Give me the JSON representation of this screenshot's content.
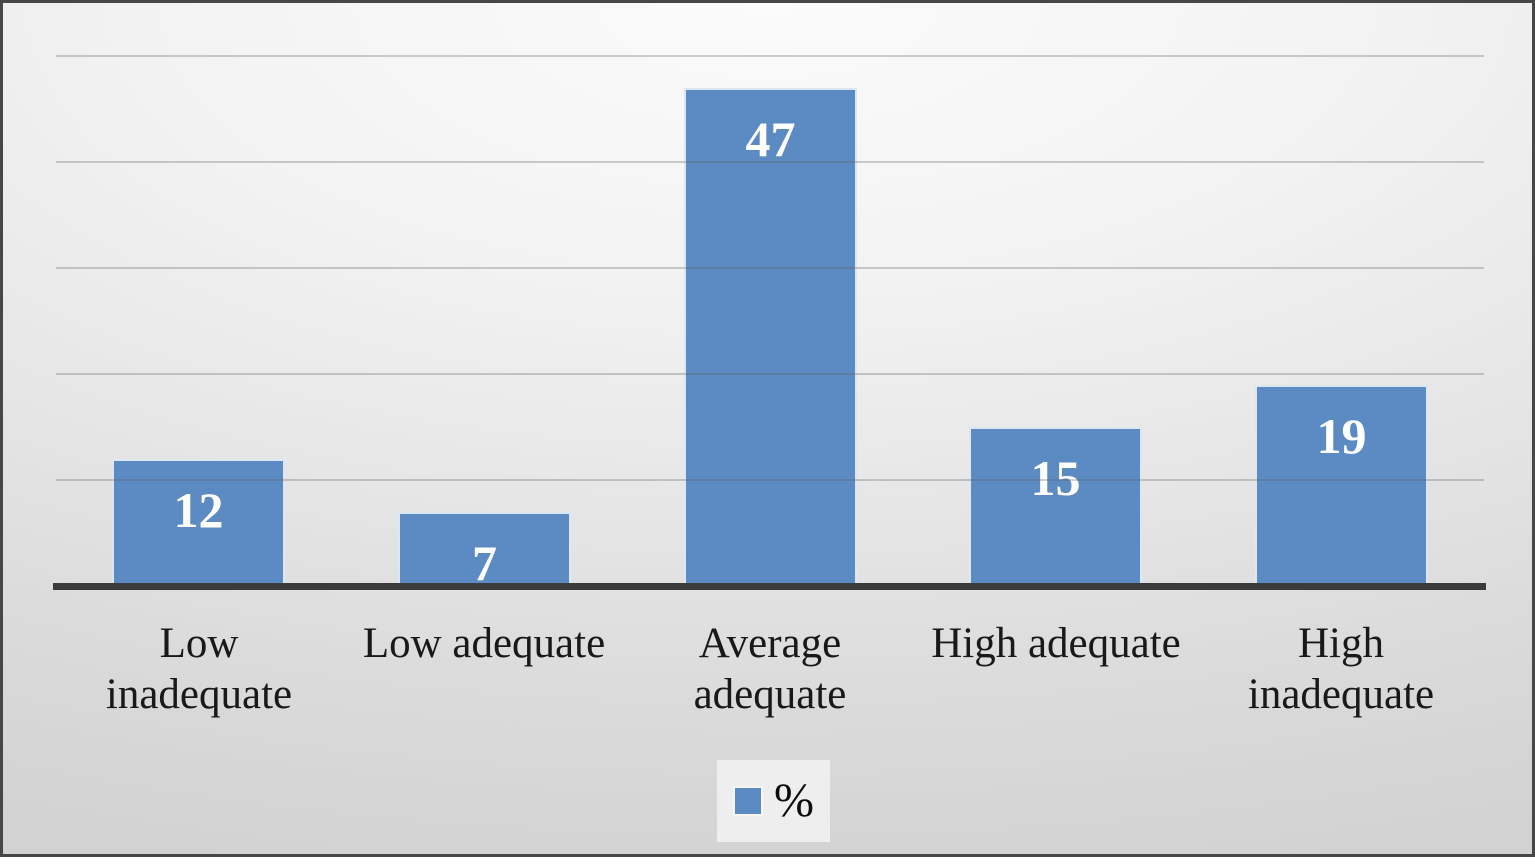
{
  "chart_data": {
    "type": "bar",
    "title": "",
    "xlabel": "",
    "ylabel": "",
    "categories": [
      "Low inadequate",
      "Low adequate",
      "Average adequate",
      "High adequate",
      "High inadequate"
    ],
    "series": [
      {
        "name": "%",
        "values": [
          12,
          7,
          47,
          15,
          19
        ]
      }
    ],
    "data_labels": [
      12,
      7,
      47,
      15,
      19
    ],
    "ylim": [
      0,
      55
    ],
    "gridline_values": [
      10,
      20,
      30,
      40,
      50
    ],
    "grid": "on",
    "y_tick_labels_visible": false,
    "legend": {
      "label": "%",
      "position": "bottom"
    },
    "colors": {
      "bar_fill": "#5c8ac3",
      "bar_border": "#dde7f3",
      "data_label_text": "#ffffff",
      "gridline": "#c3c3c3",
      "axis_line": "#3b3b3b",
      "category_label_text": "#191919",
      "legend_background": "#eeeeee",
      "frame_border": "#474747"
    }
  }
}
